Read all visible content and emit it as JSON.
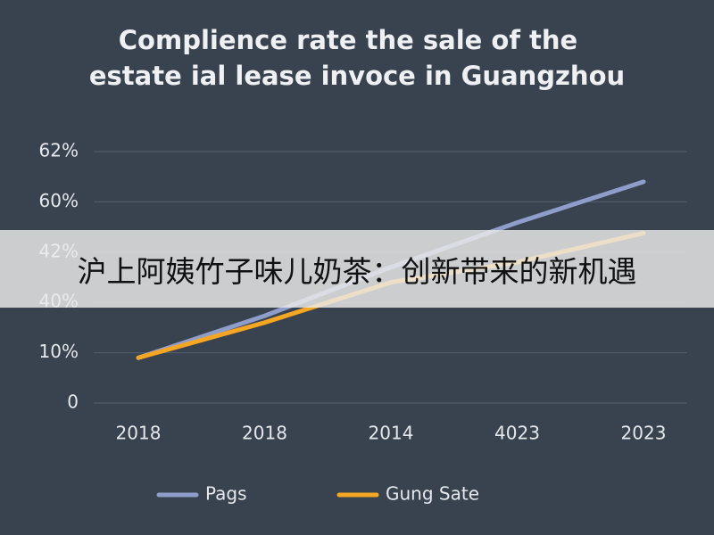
{
  "chart_data": {
    "type": "line",
    "title": [
      "Complience rate the sale of the",
      "estate ial lease invoce in Guangzhou"
    ],
    "categories": [
      "2018",
      "2018",
      "2014",
      "4023",
      "2023"
    ],
    "series": [
      {
        "name": "Pags",
        "color": "#8e9dc9",
        "values": [
          9,
          32,
          41.4,
          52.6,
          60.8
        ]
      },
      {
        "name": "Gung Sate",
        "color": "#f5a623",
        "values": [
          9,
          28,
          40.8,
          41.6,
          48.8
        ]
      }
    ],
    "ylim": [
      0,
      62
    ],
    "yticks": [
      0,
      {
        "value": 10,
        "label": "10%"
      },
      {
        "value": 40,
        "label": "40%"
      },
      {
        "value": 42,
        "label": "42%"
      },
      {
        "value": 60,
        "label": "60%"
      },
      {
        "value": 62,
        "label": "62%"
      }
    ],
    "grid": true,
    "legend": "bottom"
  },
  "banner": {
    "text": "沪上阿姨竹子味儿奶茶：创新带来的新机遇"
  }
}
